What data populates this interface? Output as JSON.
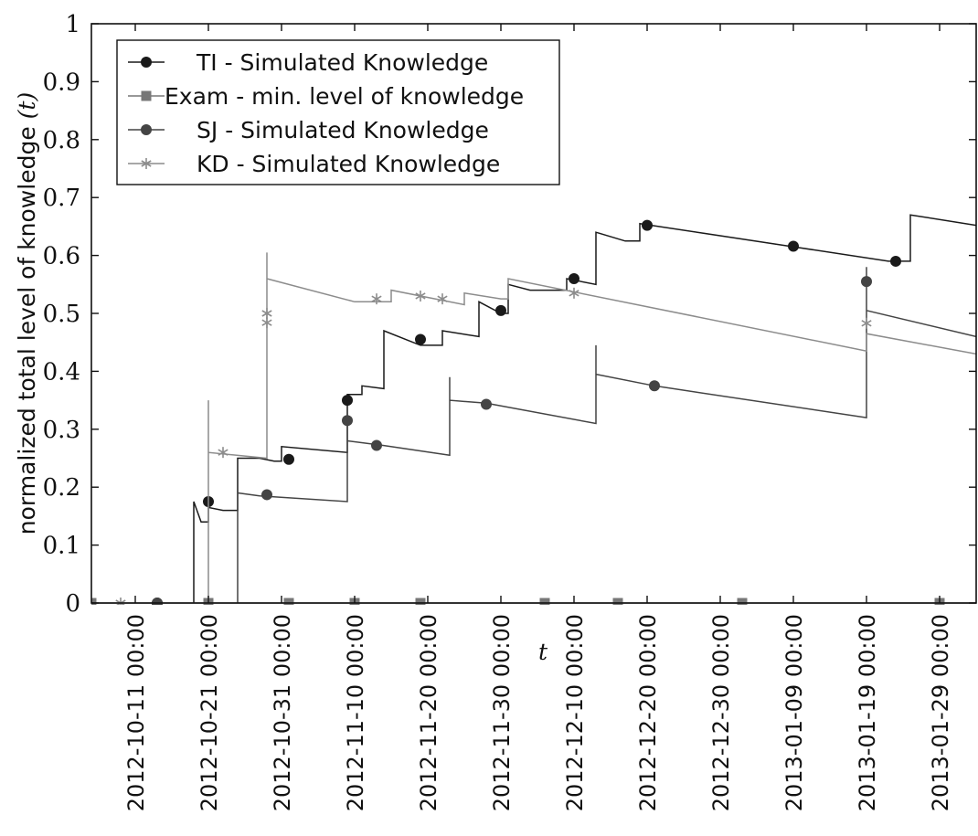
{
  "chart_data": {
    "type": "line",
    "xlabel": "t",
    "ylabel": "normalized total level of knowledge",
    "ylabel_var": "(t)",
    "ylim": [
      0,
      1
    ],
    "xlim": [
      "2012-10-05",
      "2013-02-03"
    ],
    "y_ticks": [
      "0",
      "0.1",
      "0.2",
      "0.3",
      "0.4",
      "0.5",
      "0.6",
      "0.7",
      "0.8",
      "0.9",
      "1"
    ],
    "x_ticks": [
      "2012-10-11 00:00",
      "2012-10-21 00:00",
      "2012-10-31 00:00",
      "2012-11-10 00:00",
      "2012-11-20 00:00",
      "2012-11-30 00:00",
      "2012-12-10 00:00",
      "2012-12-20 00:00",
      "2012-12-30 00:00",
      "2013-01-09 00:00",
      "2013-01-19 00:00",
      "2013-01-29 00:00"
    ],
    "legend_position": "top-left",
    "grid": false,
    "series": [
      {
        "name": "TI - Simulated Knowledge",
        "color": "#1a1a1a",
        "marker": "circle",
        "line": [
          [
            "2012-10-19",
            0
          ],
          [
            "2012-10-19",
            0.175
          ],
          [
            "2012-10-20",
            0.14
          ],
          [
            "2012-10-21",
            0.14
          ],
          [
            "2012-10-21",
            0.165
          ],
          [
            "2012-10-23",
            0.16
          ],
          [
            "2012-10-25",
            0.16
          ],
          [
            "2012-10-25",
            0.25
          ],
          [
            "2012-10-28",
            0.25
          ],
          [
            "2012-10-30",
            0.245
          ],
          [
            "2012-10-31",
            0.245
          ],
          [
            "2012-10-31",
            0.27
          ],
          [
            "2012-11-09",
            0.26
          ],
          [
            "2012-11-09",
            0.35
          ],
          [
            "2012-11-09",
            0.36
          ],
          [
            "2012-11-11",
            0.36
          ],
          [
            "2012-11-11",
            0.375
          ],
          [
            "2012-11-14",
            0.37
          ],
          [
            "2012-11-14",
            0.47
          ],
          [
            "2012-11-19",
            0.445
          ],
          [
            "2012-11-22",
            0.445
          ],
          [
            "2012-11-22",
            0.47
          ],
          [
            "2012-11-27",
            0.46
          ],
          [
            "2012-11-27",
            0.52
          ],
          [
            "2012-11-30",
            0.5
          ],
          [
            "2012-12-01",
            0.5
          ],
          [
            "2012-12-01",
            0.55
          ],
          [
            "2012-12-04",
            0.54
          ],
          [
            "2012-12-09",
            0.54
          ],
          [
            "2012-12-09",
            0.56
          ],
          [
            "2012-12-13",
            0.55
          ],
          [
            "2012-12-13",
            0.64
          ],
          [
            "2012-12-17",
            0.625
          ],
          [
            "2012-12-19",
            0.625
          ],
          [
            "2012-12-19",
            0.655
          ],
          [
            "2013-01-09",
            0.615
          ],
          [
            "2013-01-22",
            0.59
          ],
          [
            "2013-01-25",
            0.59
          ],
          [
            "2013-01-25",
            0.67
          ],
          [
            "2013-02-03",
            0.652
          ]
        ],
        "marker_points": [
          [
            "2012-10-21",
            0.175
          ],
          [
            "2012-11-01",
            0.248
          ],
          [
            "2012-11-09",
            0.35
          ],
          [
            "2012-11-19",
            0.455
          ],
          [
            "2012-11-30",
            0.505
          ],
          [
            "2012-12-10",
            0.56
          ],
          [
            "2012-12-20",
            0.652
          ],
          [
            "2013-01-09",
            0.616
          ],
          [
            "2013-01-23",
            0.59
          ],
          [
            "2012-10-14",
            0
          ]
        ]
      },
      {
        "name": "Exam - min. level of knowledge",
        "color": "#777777",
        "marker": "square",
        "line": [
          [
            "2012-10-05",
            0
          ],
          [
            "2013-02-03",
            0
          ]
        ],
        "marker_points": [
          [
            "2012-10-05",
            0
          ],
          [
            "2012-10-21",
            0
          ],
          [
            "2012-11-01",
            0
          ],
          [
            "2012-11-10",
            0
          ],
          [
            "2012-11-19",
            0
          ],
          [
            "2012-12-06",
            0
          ],
          [
            "2012-12-16",
            0
          ],
          [
            "2013-01-02",
            0
          ],
          [
            "2013-01-29",
            0
          ],
          [
            "2013-02-07",
            0
          ]
        ]
      },
      {
        "name": "SJ - Simulated Knowledge",
        "color": "#444444",
        "marker": "circle",
        "line": [
          [
            "2012-10-25",
            0
          ],
          [
            "2012-10-25",
            0.19
          ],
          [
            "2012-10-28",
            0.185
          ],
          [
            "2012-11-09",
            0.175
          ],
          [
            "2012-11-09",
            0.315
          ],
          [
            "2012-11-09",
            0.28
          ],
          [
            "2012-11-14",
            0.272
          ],
          [
            "2012-11-23",
            0.255
          ],
          [
            "2012-11-23",
            0.39
          ],
          [
            "2012-11-23",
            0.35
          ],
          [
            "2012-11-28",
            0.345
          ],
          [
            "2012-12-13",
            0.31
          ],
          [
            "2012-12-13",
            0.445
          ],
          [
            "2012-12-13",
            0.395
          ],
          [
            "2012-12-21",
            0.375
          ],
          [
            "2013-01-19",
            0.32
          ],
          [
            "2013-01-19",
            0.58
          ],
          [
            "2013-01-19",
            0.505
          ],
          [
            "2013-02-03",
            0.46
          ]
        ],
        "marker_points": [
          [
            "2012-10-14",
            0
          ],
          [
            "2012-10-29",
            0.187
          ],
          [
            "2012-11-09",
            0.315
          ],
          [
            "2012-11-13",
            0.272
          ],
          [
            "2012-11-28",
            0.343
          ],
          [
            "2012-12-21",
            0.375
          ],
          [
            "2013-01-19",
            0.555
          ]
        ]
      },
      {
        "name": "KD - Simulated Knowledge",
        "color": "#8c8c8c",
        "marker": "star",
        "line": [
          [
            "2012-10-21",
            0
          ],
          [
            "2012-10-21",
            0.35
          ],
          [
            "2012-10-21",
            0.26
          ],
          [
            "2012-10-29",
            0.25
          ],
          [
            "2012-10-29",
            0.5
          ],
          [
            "2012-10-29",
            0.43
          ],
          [
            "2012-10-29",
            0.605
          ],
          [
            "2012-10-29",
            0.56
          ],
          [
            "2012-11-10",
            0.52
          ],
          [
            "2012-11-15",
            0.52
          ],
          [
            "2012-11-15",
            0.54
          ],
          [
            "2012-11-21",
            0.525
          ],
          [
            "2012-11-25",
            0.515
          ],
          [
            "2012-11-25",
            0.535
          ],
          [
            "2012-11-30",
            0.525
          ],
          [
            "2012-12-01",
            0.525
          ],
          [
            "2012-12-01",
            0.56
          ],
          [
            "2013-01-19",
            0.435
          ],
          [
            "2013-01-19",
            0.465
          ],
          [
            "2013-02-03",
            0.43
          ]
        ],
        "marker_points": [
          [
            "2012-10-09",
            0
          ],
          [
            "2012-10-23",
            0.26
          ],
          [
            "2012-10-29",
            0.5
          ],
          [
            "2012-10-29",
            0.484
          ],
          [
            "2012-11-13",
            0.525
          ],
          [
            "2012-11-19",
            0.53
          ],
          [
            "2012-11-22",
            0.525
          ],
          [
            "2012-12-10",
            0.535
          ],
          [
            "2013-01-19",
            0.483
          ]
        ]
      }
    ]
  }
}
